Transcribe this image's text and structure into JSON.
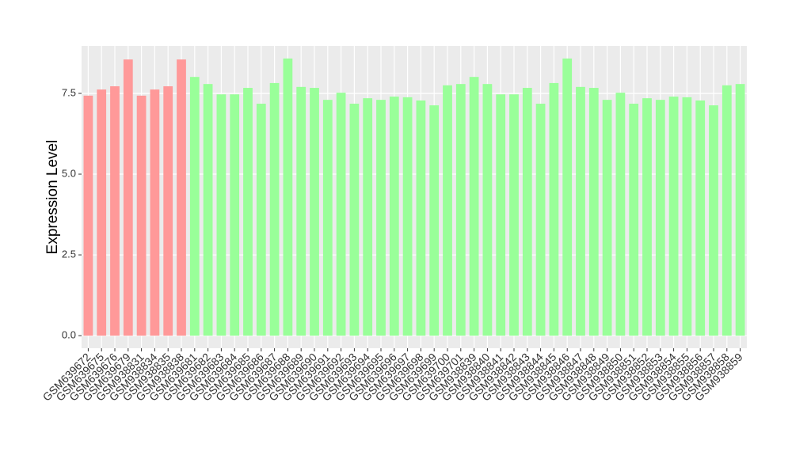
{
  "chart_data": {
    "type": "bar",
    "y_label": "Expression Level",
    "categories": [
      "GSM639672",
      "GSM639675",
      "GSM639676",
      "GSM639679",
      "GSM938831",
      "GSM938834",
      "GSM938835",
      "GSM938838",
      "GSM639681",
      "GSM639682",
      "GSM639683",
      "GSM639684",
      "GSM639685",
      "GSM639686",
      "GSM639687",
      "GSM639688",
      "GSM639689",
      "GSM639690",
      "GSM639691",
      "GSM639692",
      "GSM639693",
      "GSM639694",
      "GSM639695",
      "GSM639696",
      "GSM639697",
      "GSM639698",
      "GSM639699",
      "GSM639700",
      "GSM639701",
      "GSM938839",
      "GSM938840",
      "GSM938841",
      "GSM938842",
      "GSM938843",
      "GSM938844",
      "GSM938845",
      "GSM938846",
      "GSM938847",
      "GSM938848",
      "GSM938849",
      "GSM938850",
      "GSM938851",
      "GSM938852",
      "GSM938853",
      "GSM938854",
      "GSM938855",
      "GSM938856",
      "GSM938857",
      "GSM938858",
      "GSM938859"
    ],
    "values": [
      7.43,
      7.62,
      7.72,
      8.55,
      7.43,
      7.62,
      7.72,
      8.55,
      8.01,
      7.79,
      7.47,
      7.47,
      7.67,
      7.18,
      7.82,
      8.58,
      7.7,
      7.67,
      7.3,
      7.52,
      7.18,
      7.35,
      7.3,
      7.4,
      7.38,
      7.28,
      7.13,
      7.75,
      7.79,
      8.01,
      7.79,
      7.47,
      7.47,
      7.67,
      7.18,
      7.82,
      8.58,
      7.7,
      7.67,
      7.3,
      7.52,
      7.18,
      7.35,
      7.3,
      7.4,
      7.38,
      7.28,
      7.13,
      7.75,
      7.79
    ],
    "colors": [
      "#ff9999",
      "#ff9999",
      "#ff9999",
      "#ff9999",
      "#ff9999",
      "#ff9999",
      "#ff9999",
      "#ff9999",
      "#99ff99",
      "#99ff99",
      "#99ff99",
      "#99ff99",
      "#99ff99",
      "#99ff99",
      "#99ff99",
      "#99ff99",
      "#99ff99",
      "#99ff99",
      "#99ff99",
      "#99ff99",
      "#99ff99",
      "#99ff99",
      "#99ff99",
      "#99ff99",
      "#99ff99",
      "#99ff99",
      "#99ff99",
      "#99ff99",
      "#99ff99",
      "#99ff99",
      "#99ff99",
      "#99ff99",
      "#99ff99",
      "#99ff99",
      "#99ff99",
      "#99ff99",
      "#99ff99",
      "#99ff99",
      "#99ff99",
      "#99ff99",
      "#99ff99",
      "#99ff99",
      "#99ff99",
      "#99ff99",
      "#99ff99",
      "#99ff99",
      "#99ff99",
      "#99ff99",
      "#99ff99",
      "#99ff99"
    ],
    "ylim": [
      -0.39,
      8.97
    ],
    "yticks": [
      {
        "value": 0,
        "label": "0.0"
      },
      {
        "value": 2.5,
        "label": "2.5"
      },
      {
        "value": 5,
        "label": "5.0"
      },
      {
        "value": 7.5,
        "label": "7.5"
      }
    ],
    "grid": true
  }
}
